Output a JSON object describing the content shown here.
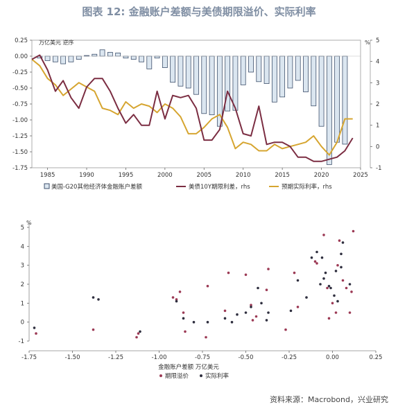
{
  "title": "图表 12: 金融账户差额与美债期限溢价、实际利率",
  "source": "资料来源：Macrobond，兴业研究",
  "colors": {
    "bar_fill": "#dbe6f0",
    "bar_stroke": "#3d4f6b",
    "term_premium": "#7b2d42",
    "real_rate": "#d6a530",
    "scatter_tp": "#9c3a55",
    "scatter_rr": "#2f2f3f"
  },
  "chart_data": [
    {
      "type": "bar",
      "left_unit": "万亿美元  逆序",
      "right_unit": "%",
      "x_ticks": [
        1985,
        1990,
        1995,
        2000,
        2005,
        2010,
        2015,
        2020,
        2025
      ],
      "y_left_ticks": [
        "0.25",
        "0.00",
        "-0.25",
        "-0.50",
        "-0.75",
        "-1.00",
        "-1.25",
        "-1.50",
        "-1.75"
      ],
      "y_left_range": [
        -1.75,
        0.25
      ],
      "y_right_ticks": [
        "5",
        "4",
        "3",
        "2",
        "1",
        "0",
        "-1"
      ],
      "y_right_range": [
        -1,
        5
      ],
      "x_range": [
        1983,
        2025
      ],
      "legend": [
        {
          "label": "美国-G20其他经济体金融账户差额",
          "kind": "bar"
        },
        {
          "label": "美债10Y期限利差，rhs",
          "kind": "line",
          "color": "#7b2d42"
        },
        {
          "label": "预期实际利率，rhs",
          "kind": "line",
          "color": "#d6a530"
        }
      ],
      "bars": {
        "x": [
          1983,
          1984,
          1985,
          1986,
          1987,
          1988,
          1989,
          1990,
          1991,
          1992,
          1993,
          1994,
          1995,
          1996,
          1997,
          1998,
          1999,
          2000,
          2001,
          2002,
          2003,
          2004,
          2005,
          2006,
          2007,
          2008,
          2009,
          2010,
          2011,
          2012,
          2013,
          2014,
          2015,
          2016,
          2017,
          2018,
          2019,
          2020,
          2021,
          2022,
          2023,
          2024
        ],
        "values": [
          0.0,
          -0.03,
          -0.07,
          -0.09,
          -0.12,
          -0.09,
          -0.05,
          0.01,
          0.03,
          0.1,
          0.06,
          0.05,
          -0.03,
          -0.05,
          -0.09,
          -0.2,
          -0.03,
          -0.18,
          -0.41,
          -0.47,
          -0.5,
          -0.6,
          -0.9,
          -0.92,
          -1.1,
          -0.86,
          -0.85,
          -0.45,
          -0.25,
          -0.4,
          -0.43,
          -0.72,
          -0.64,
          -0.5,
          -0.38,
          -0.56,
          -0.78,
          -1.1,
          -1.7,
          -1.35,
          -1.38,
          0.0
        ]
      },
      "term_premium": {
        "x": [
          1983,
          1984,
          1985,
          1986,
          1987,
          1988,
          1989,
          1990,
          1991,
          1992,
          1993,
          1994,
          1995,
          1996,
          1997,
          1998,
          1999,
          2000,
          2001,
          2002,
          2003,
          2004,
          2005,
          2006,
          2007,
          2008,
          2009,
          2010,
          2011,
          2012,
          2013,
          2014,
          2015,
          2016,
          2017,
          2018,
          2019,
          2020,
          2021,
          2022,
          2023,
          2024
        ],
        "values": [
          4.1,
          4.3,
          3.6,
          2.6,
          3.1,
          2.3,
          1.8,
          2.8,
          3.2,
          3.2,
          2.6,
          1.8,
          1.1,
          1.5,
          1.0,
          1.0,
          2.6,
          1.3,
          2.4,
          2.3,
          2.4,
          1.8,
          0.3,
          0.3,
          0.8,
          2.6,
          1.8,
          0.6,
          0.5,
          1.9,
          0.1,
          0.2,
          0.2,
          0.0,
          -0.5,
          -0.5,
          -0.7,
          -0.7,
          -0.6,
          -0.5,
          -0.2,
          0.4
        ]
      },
      "real_rate": {
        "x": [
          1983,
          1984,
          1985,
          1986,
          1987,
          1988,
          1989,
          1990,
          1991,
          1992,
          1993,
          1994,
          1995,
          1996,
          1997,
          1998,
          1999,
          2000,
          2001,
          2002,
          2003,
          2004,
          2005,
          2006,
          2007,
          2008,
          2009,
          2010,
          2011,
          2012,
          2013,
          2014,
          2015,
          2016,
          2017,
          2018,
          2019,
          2020,
          2021,
          2022,
          2023,
          2024
        ],
        "values": [
          4.1,
          3.8,
          3.2,
          2.9,
          2.4,
          2.7,
          3.0,
          2.8,
          2.6,
          1.8,
          1.7,
          1.5,
          2.1,
          1.8,
          2.0,
          1.9,
          1.6,
          2.0,
          1.8,
          1.4,
          0.6,
          0.6,
          0.9,
          1.3,
          1.5,
          0.9,
          -0.1,
          0.2,
          0.1,
          -0.2,
          -0.2,
          0.1,
          -0.1,
          0.0,
          0.1,
          0.2,
          0.5,
          0.0,
          -0.4,
          0.2,
          1.3,
          1.3
        ]
      }
    },
    {
      "type": "scatter",
      "x_label": "金融账户差额  万亿美元",
      "y_unit": "%",
      "x_ticks": [
        "-1.75",
        "-1.50",
        "-1.25",
        "-1.00",
        "-0.75",
        "-0.50",
        "-0.25",
        "0.00",
        "0.25"
      ],
      "x_range": [
        -1.75,
        0.25
      ],
      "y_ticks": [
        "5",
        "4",
        "3",
        "2",
        "1",
        "0",
        "-1"
      ],
      "y_range": [
        -1,
        5
      ],
      "legend": [
        {
          "label": "期限溢价",
          "color": "#9c3a55"
        },
        {
          "label": "实际利率",
          "color": "#2f2f3f"
        }
      ],
      "series": [
        {
          "name": "期限溢价",
          "points": [
            [
              -1.71,
              -0.6
            ],
            [
              -1.38,
              -0.4
            ],
            [
              -1.12,
              -0.6
            ],
            [
              -1.13,
              -0.8
            ],
            [
              -0.92,
              1.3
            ],
            [
              -0.9,
              1.2
            ],
            [
              -0.88,
              1.6
            ],
            [
              -0.85,
              -0.5
            ],
            [
              -0.86,
              0.5
            ],
            [
              -0.73,
              -0.8
            ],
            [
              -0.72,
              1.9
            ],
            [
              -0.62,
              0.6
            ],
            [
              -0.6,
              2.6
            ],
            [
              -0.5,
              2.5
            ],
            [
              -0.47,
              0.9
            ],
            [
              -0.46,
              0.1
            ],
            [
              -0.44,
              0.3
            ],
            [
              -0.38,
              1.7
            ],
            [
              -0.22,
              2.6
            ],
            [
              -0.2,
              0.8
            ],
            [
              -0.1,
              3.2
            ],
            [
              -0.09,
              3.1
            ],
            [
              -0.05,
              4.6
            ],
            [
              -0.03,
              1.8
            ],
            [
              -0.02,
              0.2
            ],
            [
              0.0,
              1.0
            ],
            [
              0.02,
              0.5
            ],
            [
              0.03,
              3.0
            ],
            [
              0.04,
              4.3
            ],
            [
              0.06,
              2.2
            ],
            [
              0.08,
              1.8
            ],
            [
              0.1,
              0.5
            ],
            [
              0.11,
              1.6
            ],
            [
              0.12,
              4.8
            ],
            [
              -0.27,
              -0.4
            ],
            [
              -0.37,
              2.8
            ]
          ]
        },
        {
          "name": "实际利率",
          "points": [
            [
              -1.72,
              -0.3
            ],
            [
              -1.38,
              1.3
            ],
            [
              -1.35,
              1.2
            ],
            [
              -1.11,
              -0.5
            ],
            [
              -0.9,
              1.1
            ],
            [
              -0.86,
              0.2
            ],
            [
              -0.8,
              0.0
            ],
            [
              -0.72,
              0.0
            ],
            [
              -0.62,
              0.2
            ],
            [
              -0.58,
              0.0
            ],
            [
              -0.55,
              0.4
            ],
            [
              -0.5,
              0.5
            ],
            [
              -0.47,
              0.8
            ],
            [
              -0.43,
              1.8
            ],
            [
              -0.41,
              1.0
            ],
            [
              -0.38,
              0.1
            ],
            [
              -0.37,
              0.5
            ],
            [
              -0.24,
              0.6
            ],
            [
              -0.2,
              2.2
            ],
            [
              -0.15,
              1.3
            ],
            [
              -0.12,
              3.4
            ],
            [
              -0.09,
              3.7
            ],
            [
              -0.07,
              2.0
            ],
            [
              -0.05,
              2.3
            ],
            [
              -0.04,
              2.6
            ],
            [
              -0.01,
              1.8
            ],
            [
              0.01,
              1.4
            ],
            [
              0.02,
              2.7
            ],
            [
              0.05,
              2.9
            ],
            [
              0.06,
              4.2
            ],
            [
              0.1,
              2.0
            ],
            [
              0.05,
              3.6
            ],
            [
              -0.02,
              1.9
            ],
            [
              0.03,
              1.1
            ],
            [
              -0.06,
              3.4
            ]
          ]
        }
      ]
    }
  ]
}
